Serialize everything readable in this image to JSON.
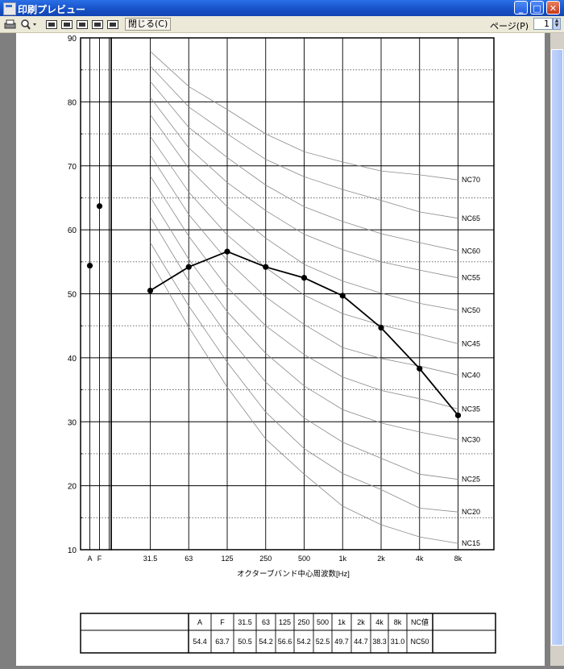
{
  "window": {
    "title": "印刷プレビュー",
    "min": "_",
    "max": "□",
    "close": "✕"
  },
  "toolbar": {
    "close_label": "閉じる(C)",
    "page_label": "ページ(P)",
    "page_value": "1"
  },
  "chart_data": {
    "type": "line",
    "xlabel": "オクターブバンド中心周波数[Hz]",
    "ylim": [
      10,
      90
    ],
    "yticks": [
      10,
      20,
      30,
      40,
      50,
      60,
      70,
      80,
      90
    ],
    "xticks": [
      "31.5",
      "63",
      "125",
      "250",
      "500",
      "1k",
      "2k",
      "4k",
      "8k"
    ],
    "side_labels": [
      "A",
      "F"
    ],
    "side_values": {
      "A": 54.4,
      "F": 63.7
    },
    "series": [
      {
        "values": [
          50.5,
          54.2,
          56.6,
          54.2,
          52.5,
          49.7,
          44.7,
          38.3,
          31.0
        ]
      }
    ],
    "nc_curves": [
      {
        "name": "NC70",
        "values": [
          87.9,
          82.4,
          78.8,
          75.0,
          72.2,
          70.6,
          69.2,
          68.6,
          67.8
        ]
      },
      {
        "name": "NC65",
        "values": [
          85.6,
          79.2,
          75.0,
          71.0,
          68.3,
          66.3,
          64.6,
          62.8,
          61.8
        ]
      },
      {
        "name": "NC60",
        "values": [
          83.2,
          76.0,
          71.3,
          67.0,
          63.6,
          61.3,
          59.4,
          58.0,
          56.7
        ]
      },
      {
        "name": "NC55",
        "values": [
          80.7,
          72.8,
          67.4,
          63.0,
          59.3,
          56.9,
          55.0,
          53.7,
          52.5
        ]
      },
      {
        "name": "NC50",
        "values": [
          78.0,
          69.6,
          63.6,
          58.7,
          54.6,
          52.0,
          50.1,
          48.5,
          47.4
        ]
      },
      {
        "name": "NC45",
        "values": [
          74.6,
          65.9,
          59.2,
          54.1,
          49.8,
          46.9,
          45.1,
          43.7,
          42.2
        ]
      },
      {
        "name": "NC40",
        "values": [
          71.7,
          62.4,
          55.2,
          49.5,
          45.2,
          41.6,
          39.9,
          38.7,
          37.3
        ]
      },
      {
        "name": "NC35",
        "values": [
          68.4,
          59.0,
          51.0,
          45.0,
          40.5,
          37.0,
          34.9,
          33.6,
          32.0
        ]
      },
      {
        "name": "NC30",
        "values": [
          65.1,
          55.4,
          47.2,
          40.7,
          35.6,
          31.9,
          29.8,
          28.4,
          27.2
        ]
      },
      {
        "name": "NC25",
        "values": [
          62.0,
          52.0,
          43.5,
          36.2,
          30.6,
          26.8,
          24.3,
          21.8,
          21.0
        ]
      },
      {
        "name": "NC20",
        "values": [
          58.0,
          48.1,
          39.3,
          31.5,
          25.8,
          21.9,
          19.4,
          16.5,
          15.9
        ]
      },
      {
        "name": "NC15",
        "values": [
          55.2,
          44.8,
          35.4,
          27.3,
          21.8,
          16.8,
          13.9,
          12.0,
          11.0
        ]
      }
    ]
  },
  "table": {
    "headers": [
      "A",
      "F",
      "31.5",
      "63",
      "125",
      "250",
      "500",
      "1k",
      "2k",
      "4k",
      "8k",
      "NC値"
    ],
    "values": [
      "54.4",
      "63.7",
      "50.5",
      "54.2",
      "56.6",
      "54.2",
      "52.5",
      "49.7",
      "44.7",
      "38.3",
      "31.0",
      "NC50"
    ]
  }
}
